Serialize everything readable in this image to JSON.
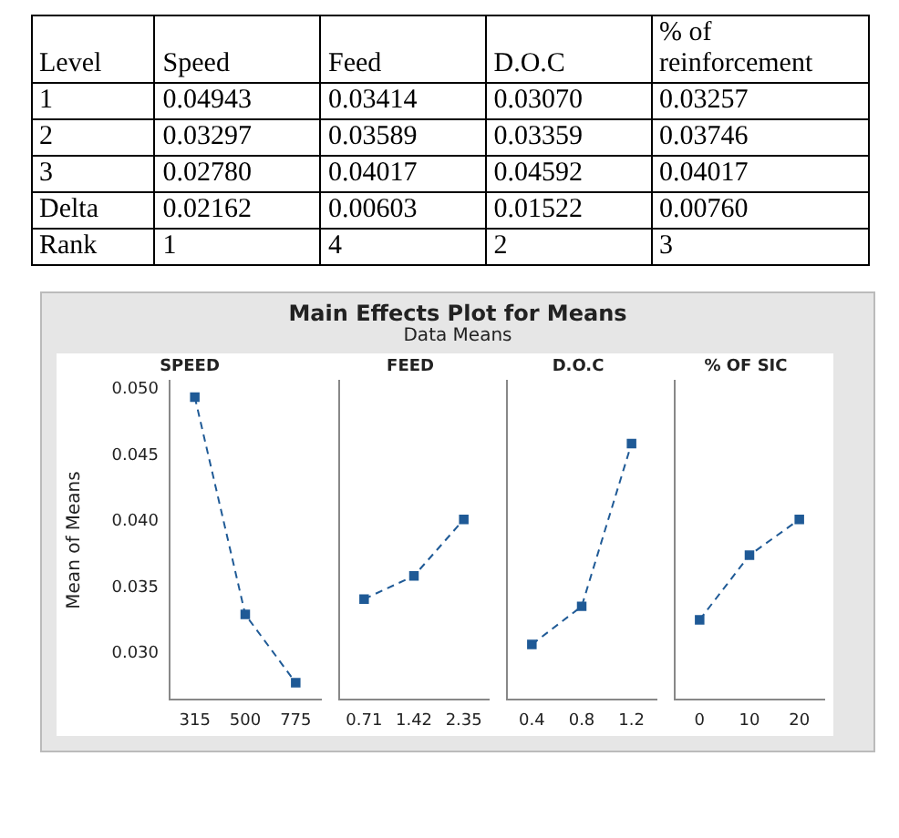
{
  "chart_data": [
    {
      "type": "other",
      "categories": [
        "Level",
        "Speed",
        "Feed",
        "D.O.C",
        "% of reinforcement"
      ],
      "annotations": [
        "1",
        "0.04943",
        "0.03414",
        "0.03070",
        "0.03257",
        "2",
        "0.03297",
        "0.03589",
        "0.03359",
        "0.03746",
        "3",
        "0.02780",
        "0.04017",
        "0.04592",
        "0.04017",
        "Delta",
        "0.02162",
        "0.00603",
        "0.01522",
        "0.00760",
        "Rank",
        "1",
        "4",
        "2",
        "3"
      ]
    },
    {
      "type": "other",
      "title": "Main Effects Plot for Means",
      "subtitle": "Data Means"
    },
    {
      "type": "line",
      "title": "SPEED",
      "ylabel": "Mean of Means",
      "categories": [
        "315",
        "500",
        "775"
      ],
      "values": [
        0.04943,
        0.03297,
        0.0278
      ],
      "color": "#1f5a96",
      "ylim": [
        0.0265,
        0.0507
      ],
      "yticks": [
        {
          "value": 0.03,
          "label": "0.030"
        },
        {
          "value": 0.035,
          "label": "0.035"
        },
        {
          "value": 0.04,
          "label": "0.040"
        },
        {
          "value": 0.045,
          "label": "0.045"
        },
        {
          "value": 0.05,
          "label": "0.050"
        }
      ],
      "marker": "square",
      "line_style": "dashed",
      "grid": false,
      "legend": false
    },
    {
      "type": "line",
      "title": "FEED",
      "categories": [
        "0.71",
        "1.42",
        "2.35"
      ],
      "values": [
        0.03414,
        0.03589,
        0.04017
      ],
      "color": "#1f5a96",
      "ylim": [
        0.0265,
        0.0507
      ],
      "tick_labels": "x",
      "marker": "square",
      "line_style": "dashed",
      "grid": false,
      "legend": false
    },
    {
      "type": "line",
      "title": "D.O.C",
      "categories": [
        "0.4",
        "0.8",
        "1.2"
      ],
      "values": [
        0.0307,
        0.03359,
        0.04592
      ],
      "color": "#1f5a96",
      "ylim": [
        0.0265,
        0.0507
      ],
      "tick_labels": "x",
      "marker": "square",
      "line_style": "dashed",
      "grid": false,
      "legend": false
    },
    {
      "type": "line",
      "title": "% OF SIC",
      "categories": [
        "0",
        "10",
        "20"
      ],
      "values": [
        0.03257,
        0.03746,
        0.04017
      ],
      "color": "#1f5a96",
      "ylim": [
        0.0265,
        0.0507
      ],
      "tick_labels": "x",
      "marker": "square",
      "line_style": "dashed",
      "grid": false,
      "legend": false
    }
  ]
}
